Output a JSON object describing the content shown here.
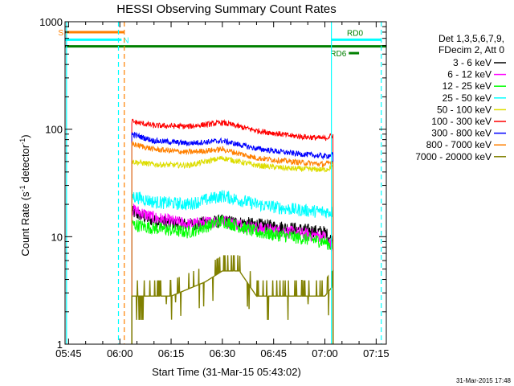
{
  "chart_data": {
    "type": "line",
    "title": "HESSI Observing Summary Count Rates",
    "xlabel": "Start Time (31-Mar-15 05:43:02)",
    "ylabel_main": "Count Rate (s",
    "ylabel_sup1": "-1",
    "ylabel_mid": " detector",
    "ylabel_sup2": "-1",
    "ylabel_end": ")",
    "y_scale": "log",
    "ylim": [
      1,
      1000
    ],
    "xlim_minutes": [
      -1.03,
      92.97
    ],
    "x_ticks": [
      {
        "label": "05:45",
        "minute": 0
      },
      {
        "label": "06:00",
        "minute": 15
      },
      {
        "label": "06:15",
        "minute": 30
      },
      {
        "label": "06:30",
        "minute": 45
      },
      {
        "label": "06:45",
        "minute": 60
      },
      {
        "label": "07:00",
        "minute": 75
      },
      {
        "label": "07:15",
        "minute": 90
      }
    ],
    "y_ticks": [
      {
        "label": "1",
        "value": 1
      },
      {
        "label": "10",
        "value": 10
      },
      {
        "label": "100",
        "value": 100
      },
      {
        "label": "1000",
        "value": 1000
      }
    ],
    "legend_header": [
      "Det 1,3,5,6,7,9,",
      "FDecim 2, Att 0"
    ],
    "legend_placement": "top-right outside",
    "data_start_minute": 18.5,
    "data_end_minute": 77.4,
    "series": [
      {
        "name": "3 - 6 keV",
        "color": "#000000",
        "points": [
          [
            18.5,
            17
          ],
          [
            25,
            14
          ],
          [
            35,
            13
          ],
          [
            45,
            14
          ],
          [
            55,
            13
          ],
          [
            65,
            12
          ],
          [
            75,
            11
          ],
          [
            77.4,
            9
          ]
        ]
      },
      {
        "name": "6 - 12 keV",
        "color": "#ff00ff",
        "points": [
          [
            18.5,
            18
          ],
          [
            25,
            15
          ],
          [
            35,
            13
          ],
          [
            45,
            14
          ],
          [
            55,
            12
          ],
          [
            65,
            11
          ],
          [
            75,
            10
          ],
          [
            77.4,
            7.5
          ]
        ]
      },
      {
        "name": "12 - 25 keV",
        "color": "#00ff00",
        "points": [
          [
            18.5,
            13
          ],
          [
            25,
            12
          ],
          [
            35,
            11
          ],
          [
            45,
            14
          ],
          [
            55,
            11
          ],
          [
            65,
            10
          ],
          [
            75,
            9
          ],
          [
            77.4,
            8
          ]
        ]
      },
      {
        "name": "25 - 50 keV",
        "color": "#00ffff",
        "points": [
          [
            18.5,
            24
          ],
          [
            25,
            21
          ],
          [
            35,
            20
          ],
          [
            45,
            24
          ],
          [
            55,
            20
          ],
          [
            65,
            18
          ],
          [
            75,
            17
          ],
          [
            77.4,
            17
          ]
        ]
      },
      {
        "name": "50 - 100 keV",
        "color": "#dddd00",
        "points": [
          [
            18.5,
            50
          ],
          [
            25,
            47
          ],
          [
            35,
            46
          ],
          [
            45,
            54
          ],
          [
            55,
            46
          ],
          [
            65,
            43
          ],
          [
            75,
            42
          ],
          [
            77.4,
            45
          ]
        ]
      },
      {
        "name": "100 - 300 keV",
        "color": "#ff0000",
        "points": [
          [
            18.5,
            118
          ],
          [
            25,
            108
          ],
          [
            35,
            106
          ],
          [
            45,
            115
          ],
          [
            55,
            97
          ],
          [
            65,
            87
          ],
          [
            75,
            82
          ],
          [
            77.4,
            88
          ]
        ]
      },
      {
        "name": "300 - 800 keV",
        "color": "#0000ff",
        "points": [
          [
            18.5,
            90
          ],
          [
            25,
            78
          ],
          [
            35,
            74
          ],
          [
            45,
            78
          ],
          [
            55,
            66
          ],
          [
            65,
            60
          ],
          [
            75,
            56
          ],
          [
            77.4,
            58
          ]
        ]
      },
      {
        "name": "800 - 7000 keV",
        "color": "#ff8000",
        "points": [
          [
            18.5,
            73
          ],
          [
            25,
            65
          ],
          [
            35,
            61
          ],
          [
            45,
            65
          ],
          [
            55,
            54
          ],
          [
            65,
            50
          ],
          [
            75,
            47
          ],
          [
            77.4,
            50
          ]
        ]
      },
      {
        "name": "7000 - 20000 keV",
        "color": "#808000",
        "points": [
          [
            18.5,
            2.8
          ],
          [
            30,
            2.8
          ],
          [
            40,
            3.8
          ],
          [
            45,
            4.8
          ],
          [
            50,
            4.8
          ],
          [
            55,
            2.8
          ],
          [
            65,
            2.8
          ],
          [
            75,
            2.8
          ],
          [
            77.4,
            3.5
          ]
        ]
      }
    ],
    "flags": [
      {
        "label": "S",
        "color": "#ff8000",
        "y_value": 800,
        "x_start": -1.03,
        "x_end": 16.3
      },
      {
        "label": "N",
        "color": "#00ffff",
        "y_value": 680,
        "x_start": -1.03,
        "x_end": 15.5
      },
      {
        "label": "",
        "color": "#008000",
        "y_value": 590,
        "x_start": -1.03,
        "x_end": 92.97
      },
      {
        "label": "RD6",
        "color": "#008000",
        "y_value": 510,
        "x_start": 82,
        "x_end": 85
      },
      {
        "label": "RD0",
        "color": "#00ffff",
        "y_value": 680,
        "x_start": 77.0,
        "x_end": 91.5
      }
    ],
    "vlines": [
      {
        "minute": -0.6,
        "color": "#00ffff",
        "style": "solid"
      },
      {
        "minute": 14.6,
        "color": "#00ffff",
        "style": "dashed"
      },
      {
        "minute": 16.3,
        "color": "#ff8000",
        "style": "dashed"
      },
      {
        "minute": 76.9,
        "color": "#00ffff",
        "style": "solid"
      },
      {
        "minute": 91.5,
        "color": "#00ffff",
        "style": "dashed"
      }
    ],
    "timestamp": "31-Mar-2015 17:48"
  }
}
